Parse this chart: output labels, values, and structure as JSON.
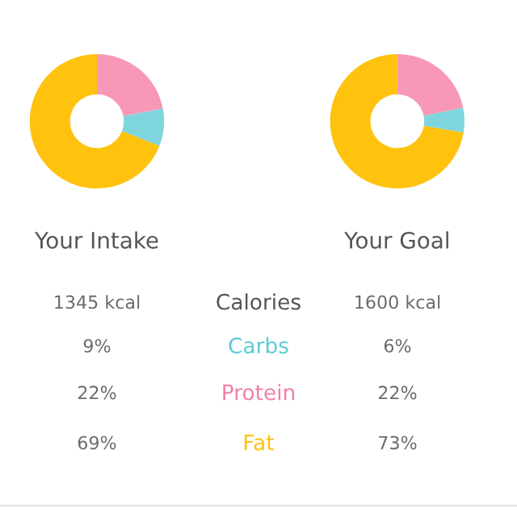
{
  "chart_data": [
    {
      "type": "donut",
      "title": "Your Intake",
      "categories": [
        null,
        null,
        null
      ],
      "values": [
        22,
        9,
        69
      ],
      "colors": [
        "#f898b6",
        "#7fd5dd",
        "#ffc20e"
      ]
    },
    {
      "type": "donut",
      "title": "Your Goal",
      "categories": [
        null,
        null,
        null
      ],
      "values": [
        22,
        6,
        73
      ],
      "colors": [
        "#f898b6",
        "#7fd5dd",
        "#ffc20e"
      ]
    },
    {
      "type": "other",
      "annotations": [
        "1345 kcal",
        "Calories",
        "1600 kcal",
        "9%",
        "Carbs",
        "6%",
        "22%",
        "Protein",
        "22%",
        "69%",
        "Fat",
        "73%"
      ],
      "colors": [
        "#6b6b6b",
        "#555555",
        "#6b6b6b",
        "#6b6b6b",
        "#5ccbd6",
        "#6b6b6b",
        "#6b6b6b",
        "#f47fa6",
        "#6b6b6b",
        "#6b6b6b",
        "#ffc20e",
        "#6b6b6b"
      ]
    }
  ]
}
